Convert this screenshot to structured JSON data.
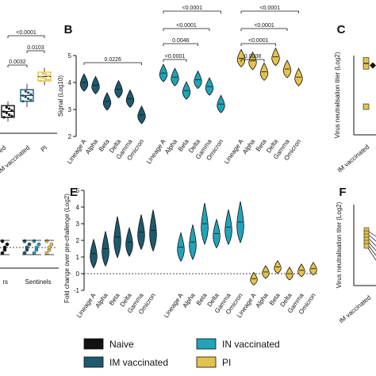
{
  "colors": {
    "naive": "#111111",
    "im": "#1d5a6e",
    "in": "#22a3b8",
    "pi": "#e3c24e",
    "im_light": "#3c7f93"
  },
  "legend": [
    {
      "label": "Naive",
      "color": "#111111"
    },
    {
      "label": "IM vaccinated",
      "color": "#1d5a6e"
    },
    {
      "label": "IN vaccinated",
      "color": "#22a3b8"
    },
    {
      "label": "PI",
      "color": "#e3c24e"
    }
  ],
  "panel_letters": {
    "B": "B",
    "C": "C",
    "E": "E",
    "F": "F"
  },
  "chart_data": [
    {
      "panel": "A (partial)",
      "type": "box",
      "categories": [
        "ed",
        "IM vaccinated",
        "PI"
      ],
      "groups": [
        {
          "name": "Naive",
          "median": 3.35,
          "q1": 3.15,
          "q3": 3.55,
          "min": 3.0,
          "max": 3.7
        },
        {
          "name": "IM vaccinated",
          "median": 3.9,
          "q1": 3.7,
          "q3": 4.1,
          "min": 3.5,
          "max": 4.3
        },
        {
          "name": "PI",
          "median": 4.55,
          "q1": 4.4,
          "q3": 4.7,
          "min": 4.25,
          "max": 4.85
        }
      ],
      "pvalues": [
        "<0.0001",
        "0.0032",
        "0.0103"
      ]
    },
    {
      "panel": "B",
      "type": "violin",
      "ylabel": "Signal (Log10)",
      "ylim": [
        2,
        5
      ],
      "yticks": [
        "2",
        "3",
        "4",
        "5"
      ],
      "categories": [
        "Lineage A",
        "Alpha",
        "Beta",
        "Delta",
        "Gamma",
        "Omicron"
      ],
      "series": [
        {
          "group": "IM vaccinated",
          "medians": [
            4.0,
            3.9,
            3.3,
            3.75,
            3.4,
            2.8
          ]
        },
        {
          "group": "IN vaccinated",
          "medians": [
            4.35,
            4.2,
            3.7,
            4.1,
            3.85,
            3.2
          ]
        },
        {
          "group": "PI",
          "medians": [
            4.9,
            4.8,
            4.4,
            4.95,
            4.5,
            4.2
          ]
        }
      ],
      "pvalues": [
        {
          "label": "0.0226",
          "group": "IM vaccinated",
          "from": 0,
          "to": 5
        },
        {
          "label": "<0.0001",
          "group": "IN vaccinated",
          "from": 0,
          "to": 5,
          "level": 3
        },
        {
          "label": "<0.0001",
          "group": "IN vaccinated",
          "from": 0,
          "to": 4,
          "level": 2
        },
        {
          "label": "0.0046",
          "group": "IN vaccinated",
          "from": 0,
          "to": 3,
          "level": 1
        },
        {
          "label": "<0.0001",
          "group": "IN vaccinated",
          "from": 0,
          "to": 2,
          "level": 0
        },
        {
          "label": "<0.0001",
          "group": "PI",
          "from": 0,
          "to": 5,
          "level": 3
        },
        {
          "label": "<0.0001",
          "group": "PI",
          "from": 0,
          "to": 4,
          "level": 2
        },
        {
          "label": "<0.0001",
          "group": "PI",
          "from": 0,
          "to": 3,
          "level": 1
        },
        {
          "label": "0.0008",
          "group": "PI",
          "from": 0,
          "to": 2,
          "level": 0
        }
      ]
    },
    {
      "panel": "C (partial)",
      "type": "scatter",
      "ylabel": "Virus neutralisation titer (Log2)",
      "categories": [
        "IM vaccinated"
      ],
      "points": [
        11.2,
        10.3,
        4.2
      ],
      "naive_points": [
        10.5
      ]
    },
    {
      "panel": "D (partial)",
      "type": "scatter",
      "categories": [
        "rs",
        "Sentinels"
      ],
      "reference_line": 1
    },
    {
      "panel": "E",
      "type": "violin",
      "ylabel": "Fold change over pre-challenge (Log2)",
      "ylim": [
        -1,
        5
      ],
      "yticks": [
        "-1",
        "0",
        "1",
        "2",
        "3",
        "4",
        "5"
      ],
      "categories": [
        "Lineage A",
        "Alpha",
        "Beta",
        "Delta",
        "Gamma",
        "Omicron"
      ],
      "series": [
        {
          "group": "IM vaccinated",
          "medians": [
            1.2,
            1.5,
            2.2,
            1.9,
            2.5,
            2.6
          ]
        },
        {
          "group": "IN vaccinated",
          "medians": [
            1.6,
            1.9,
            3.0,
            2.4,
            2.8,
            3.1
          ]
        },
        {
          "group": "PI",
          "medians": [
            -0.3,
            0.1,
            0.4,
            0.0,
            0.2,
            0.3
          ]
        }
      ],
      "reference_line": 0
    },
    {
      "panel": "F (partial)",
      "type": "paired-line",
      "ylabel": "Virus neutralisation titer (Log2)",
      "categories": [
        "IM vaccinated"
      ]
    }
  ]
}
